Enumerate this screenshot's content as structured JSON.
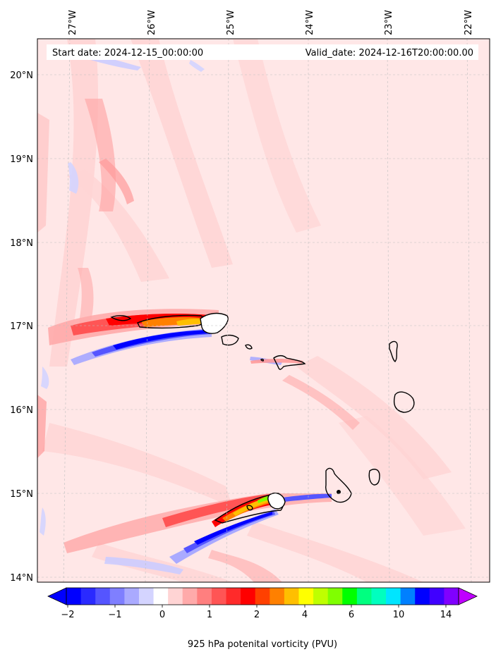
{
  "header": {
    "start_label": "Start date: 2024-12-15_00:00:00",
    "valid_label": "Valid_date: 2024-12-16T20:00:00.00"
  },
  "axes": {
    "lon_labels": [
      "27°W",
      "26°W",
      "25°W",
      "24°W",
      "23°W",
      "22°W"
    ],
    "lat_labels": [
      "20°N",
      "19°N",
      "18°N",
      "17°N",
      "16°N",
      "15°N",
      "14°N"
    ]
  },
  "colorbar": {
    "title": "925 hPa potenital vorticity (PVU)",
    "tick_labels": [
      "−2",
      "−1",
      "0",
      "1",
      "2",
      "4",
      "6",
      "10",
      "14"
    ],
    "colors": [
      "#0000ff",
      "#2a2aff",
      "#5555ff",
      "#7f7fff",
      "#aaaaff",
      "#d4d4ff",
      "#ffffff",
      "#ffd4d4",
      "#ffaaaa",
      "#ff7f7f",
      "#ff5555",
      "#ff2a2a",
      "#ff0000",
      "#ff4000",
      "#ff8000",
      "#ffbf00",
      "#ffff00",
      "#bfff00",
      "#80ff00",
      "#00ff00",
      "#00ff80",
      "#00ffbf",
      "#00e5ff",
      "#0080ff",
      "#0000ff",
      "#4000ff",
      "#8000ff"
    ],
    "under_color": "#0000ff",
    "over_color": "#bf00ff"
  }
}
